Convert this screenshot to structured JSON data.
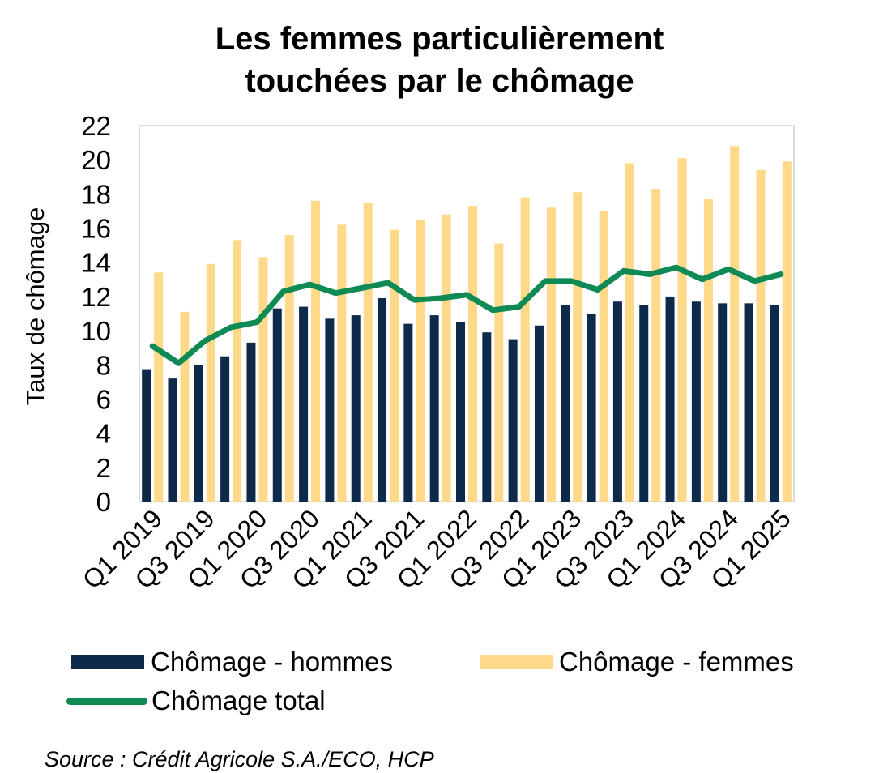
{
  "chart_data": {
    "type": "bar",
    "title_lines": [
      "Les femmes particulièrement",
      "touchées par le chômage"
    ],
    "xlabel": "",
    "ylabel": "Taux de chômage",
    "ylim": [
      0,
      22
    ],
    "yticks": [
      0,
      2,
      4,
      6,
      8,
      10,
      12,
      14,
      16,
      18,
      20,
      22
    ],
    "categories": [
      "Q1 2019",
      "Q2 2019",
      "Q3 2019",
      "Q4 2019",
      "Q1 2020",
      "Q2 2020",
      "Q3 2020",
      "Q4 2020",
      "Q1 2021",
      "Q2 2021",
      "Q3 2021",
      "Q4 2021",
      "Q1 2022",
      "Q2 2022",
      "Q3 2022",
      "Q4 2022",
      "Q1 2023",
      "Q2 2023",
      "Q3 2023",
      "Q4 2023",
      "Q1 2024",
      "Q2 2024",
      "Q3 2024",
      "Q4 2024",
      "Q1 2025"
    ],
    "xtick_labels": [
      "Q1 2019",
      "Q3 2019",
      "Q1 2020",
      "Q3 2020",
      "Q1 2021",
      "Q3 2021",
      "Q1 2022",
      "Q3 2022",
      "Q1 2023",
      "Q3 2023",
      "Q1 2024",
      "Q3 2024",
      "Q1 2025"
    ],
    "series": [
      {
        "name": "Chômage - hommes",
        "kind": "bar",
        "color": "#0d2a4a",
        "values": [
          7.7,
          7.2,
          8.0,
          8.5,
          9.3,
          11.3,
          11.4,
          10.7,
          10.9,
          11.9,
          10.4,
          10.9,
          10.5,
          9.9,
          9.5,
          10.3,
          11.5,
          11.0,
          11.7,
          11.5,
          12.0,
          11.7,
          11.6,
          11.6,
          11.5
        ]
      },
      {
        "name": "Chômage - femmes",
        "kind": "bar",
        "color": "#ffd98a",
        "values": [
          13.4,
          11.1,
          13.9,
          15.3,
          14.3,
          15.6,
          17.6,
          16.2,
          17.5,
          15.9,
          16.5,
          16.8,
          17.3,
          15.1,
          17.8,
          17.2,
          18.1,
          17.0,
          19.8,
          18.3,
          20.1,
          17.7,
          20.8,
          19.4,
          19.9
        ]
      },
      {
        "name": "Chômage total",
        "kind": "line",
        "color": "#0f8a55",
        "values": [
          9.1,
          8.1,
          9.4,
          10.2,
          10.5,
          12.3,
          12.7,
          12.2,
          12.5,
          12.8,
          11.8,
          11.9,
          12.1,
          11.2,
          11.4,
          12.9,
          12.9,
          12.4,
          13.5,
          13.3,
          13.7,
          13.0,
          13.6,
          12.9,
          13.3
        ]
      }
    ],
    "grid": false,
    "legend_position": "bottom"
  },
  "legend": {
    "hommes": "Chômage - hommes",
    "femmes": "Chômage - femmes",
    "total": "Chômage total"
  },
  "source": "Source : Crédit Agricole S.A./ECO, HCP"
}
